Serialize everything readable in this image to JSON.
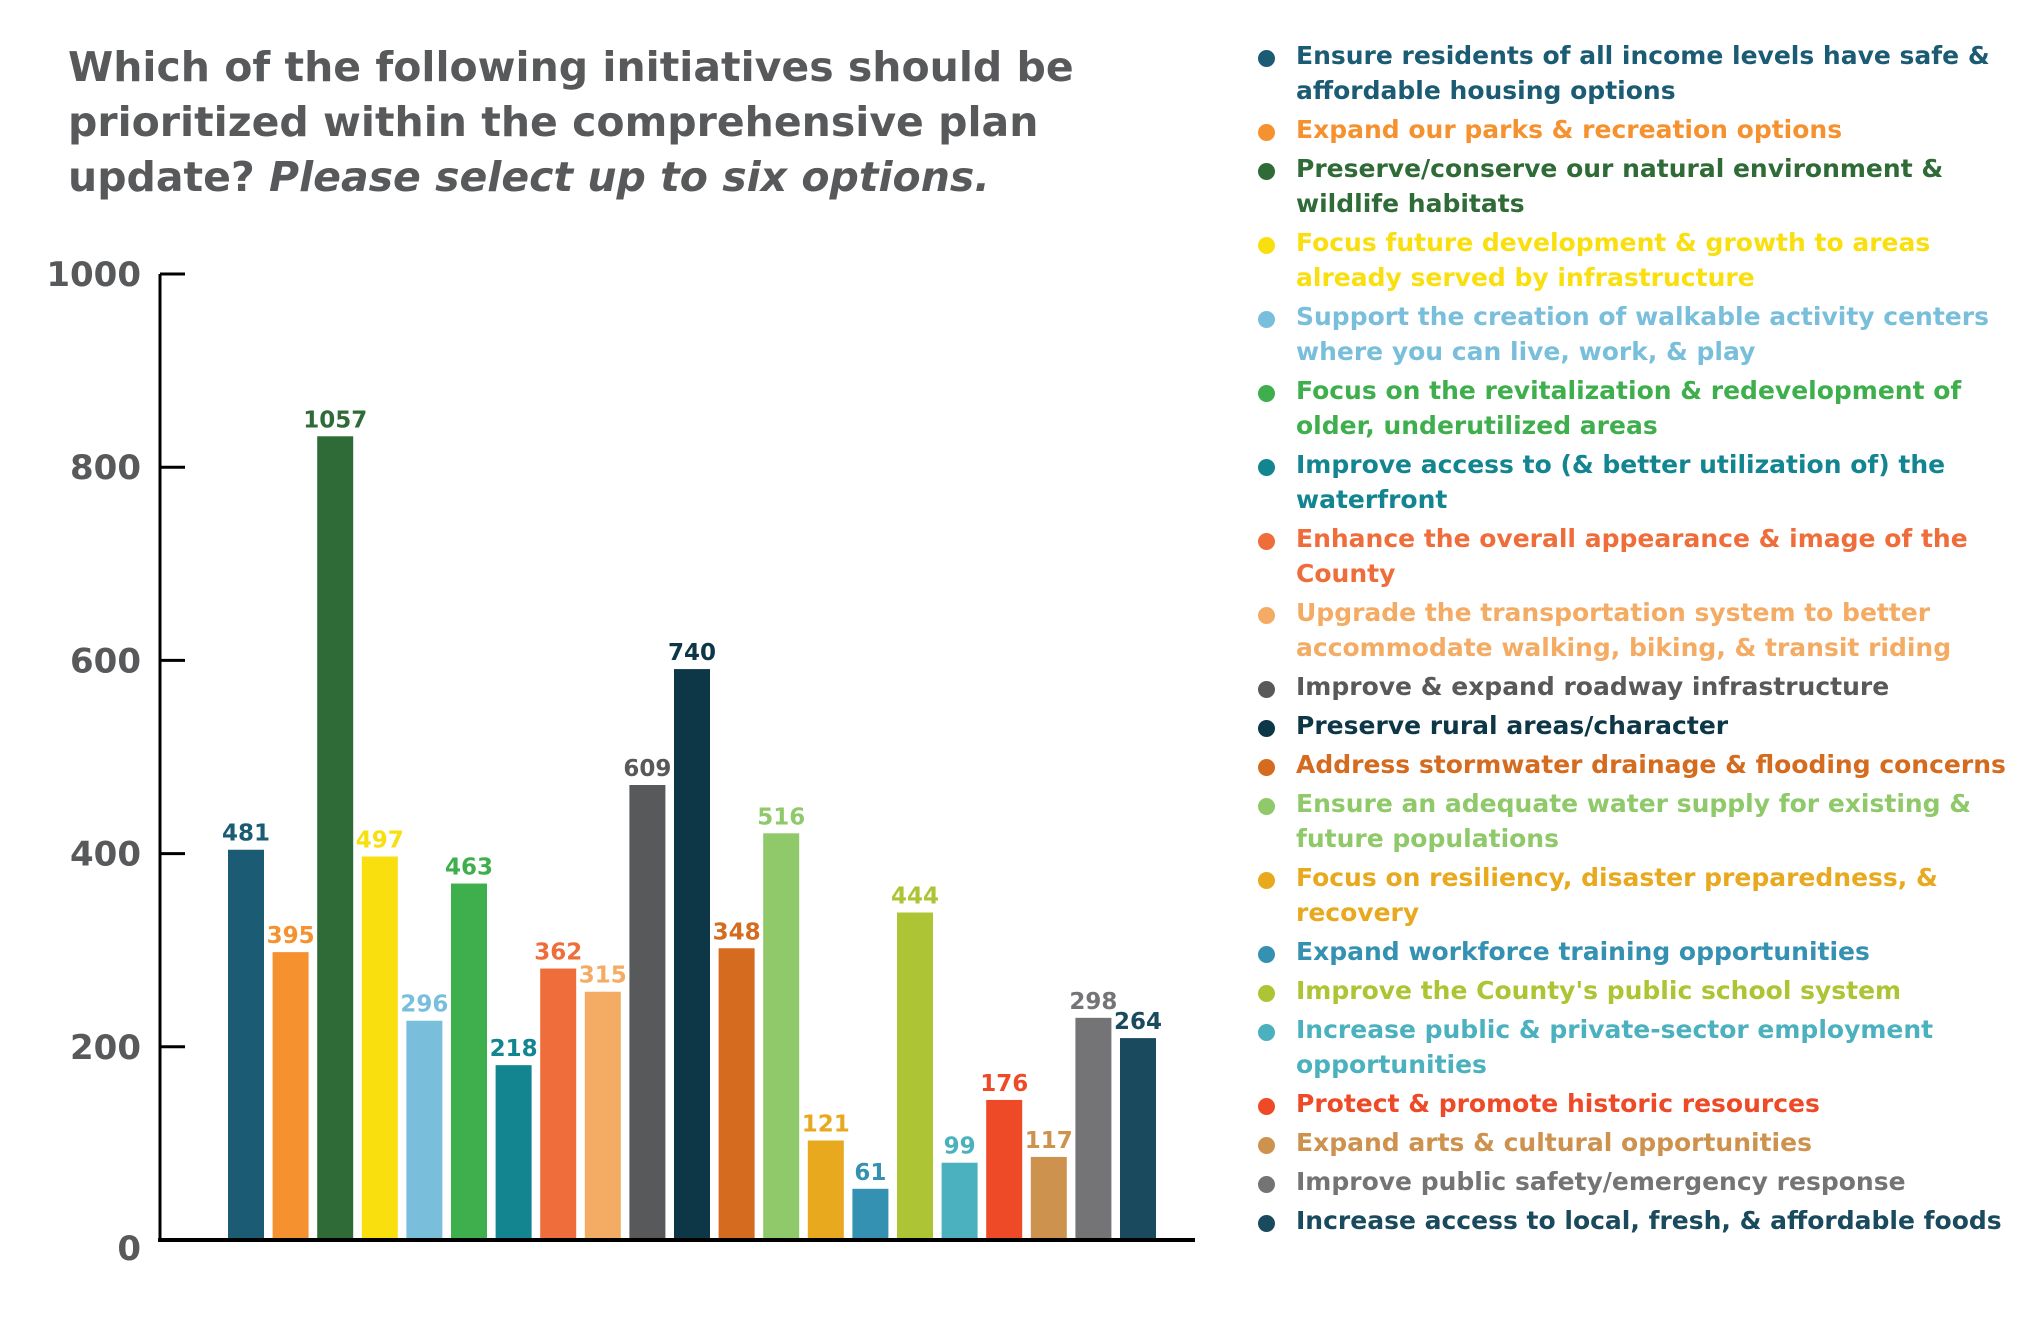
{
  "title": {
    "main": "Which of the following initiatives should be prioritized within the comprehensive plan update?",
    "emphasis": "Please select up to six options."
  },
  "chart_data": {
    "type": "bar",
    "ylim": [
      0,
      1000
    ],
    "yticks": [
      0,
      200,
      400,
      600,
      800,
      1000
    ],
    "grid": false,
    "legend_position": "right",
    "categories": [
      "Ensure residents of all income levels have safe & affordable housing options",
      "Expand our parks & recreation options",
      "Preserve/conserve our natural environment & wildlife habitats",
      "Focus future development & growth to areas already served by infrastructure",
      "Support the creation of walkable activity centers where you can live, work, & play",
      "Focus on the revitalization & redevelopment of older, underutilized areas",
      "Improve access to (& better utilization of) the waterfront",
      "Enhance the overall appearance & image of the County",
      "Upgrade the transportation system to better accommodate walking, biking, & transit riding",
      "Improve & expand roadway infrastructure",
      "Preserve rural areas/character",
      "Address stormwater drainage & flooding concerns",
      "Ensure an adequate water supply for existing & future populations",
      "Focus on resiliency, disaster preparedness, & recovery",
      "Expand workforce training opportunities",
      "Improve the County's public school system",
      "Increase public & private-sector employment opportunities",
      "Protect & promote historic resources",
      "Expand arts & cultural opportunities",
      "Improve public safety/emergency response",
      "Increase access to local, fresh, & affordable foods"
    ],
    "values": [
      481,
      395,
      1057,
      497,
      296,
      463,
      218,
      362,
      315,
      609,
      740,
      348,
      516,
      121,
      61,
      444,
      99,
      176,
      117,
      298,
      264
    ],
    "bar_heights": [
      404,
      298,
      832,
      397,
      227,
      369,
      181,
      281,
      257,
      471,
      591,
      302,
      421,
      103,
      53,
      339,
      80,
      145,
      86,
      230,
      209
    ],
    "colors": [
      "#1b5b73",
      "#f5922f",
      "#2f6b37",
      "#f9df0e",
      "#79bfdc",
      "#3fae4c",
      "#138591",
      "#ef6d3a",
      "#f4ab63",
      "#58595b",
      "#0d3646",
      "#d46b1f",
      "#8fc96a",
      "#e8a91e",
      "#3591b1",
      "#adc534",
      "#4bb1be",
      "#ee4a28",
      "#cd924e",
      "#747476",
      "#1a4a5d"
    ]
  }
}
